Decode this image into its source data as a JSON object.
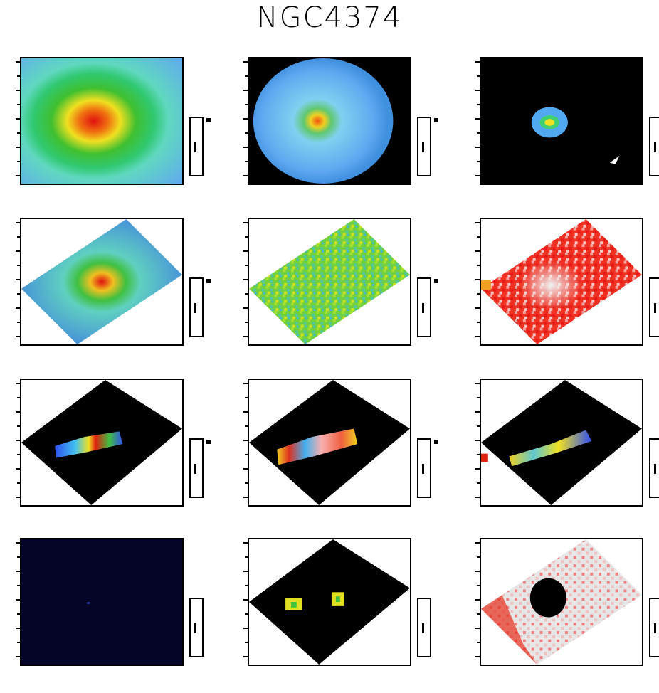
{
  "figure": {
    "title": "NGC4374"
  },
  "colors": {
    "background": "#ffffff",
    "frame": "#000000",
    "black_fill": "#000000",
    "navy_fill": "#050528",
    "light_gray_fill": "#e6e6e6"
  },
  "panels": [
    {
      "id": "p1",
      "title": "",
      "cmap": "rainbow-radial",
      "background": "light",
      "tick_labels": [
        "",
        "",
        "",
        "",
        ""
      ]
    },
    {
      "id": "p2",
      "title": "",
      "cmap": "blue-radial",
      "background": "black",
      "tick_labels": [
        "",
        "",
        "",
        "",
        ""
      ]
    },
    {
      "id": "p3",
      "title": "",
      "cmap": "compact",
      "background": "black",
      "tick_labels": [
        "",
        "",
        "",
        "",
        ""
      ]
    },
    {
      "id": "p4",
      "title": "",
      "cmap": "rotated-radial",
      "background": "white",
      "tick_labels": [
        "",
        "",
        "",
        "",
        ""
      ]
    },
    {
      "id": "p5",
      "title": "",
      "cmap": "rotated-noise-green",
      "background": "white",
      "tick_labels": [
        "",
        "",
        "",
        "",
        ""
      ]
    },
    {
      "id": "p6",
      "title": "",
      "cmap": "rotated-noise-red",
      "background": "white",
      "tick_labels": [
        "",
        "",
        "",
        "",
        ""
      ]
    },
    {
      "id": "p7",
      "title": "",
      "cmap": "rotated-band",
      "background": "white",
      "tick_labels": [
        "",
        "",
        "",
        "",
        ""
      ]
    },
    {
      "id": "p8",
      "title": "",
      "cmap": "rotated-band-mixed",
      "background": "white",
      "tick_labels": [
        "",
        "",
        "",
        "",
        ""
      ]
    },
    {
      "id": "p9",
      "title": "",
      "cmap": "rotated-band-mixed2",
      "background": "white",
      "tick_labels": [
        "",
        "",
        "",
        "",
        ""
      ]
    },
    {
      "id": "p10",
      "title": "",
      "cmap": "dark",
      "background": "navy",
      "tick_labels": [
        "",
        "",
        "",
        "",
        ""
      ]
    },
    {
      "id": "p11",
      "title": "",
      "cmap": "rotated-sparse",
      "background": "white",
      "tick_labels": [
        "",
        "",
        "",
        "",
        ""
      ]
    },
    {
      "id": "p12",
      "title": "",
      "cmap": "rotated-ring",
      "background": "white",
      "tick_labels": [
        "",
        "",
        "",
        "",
        ""
      ]
    }
  ]
}
